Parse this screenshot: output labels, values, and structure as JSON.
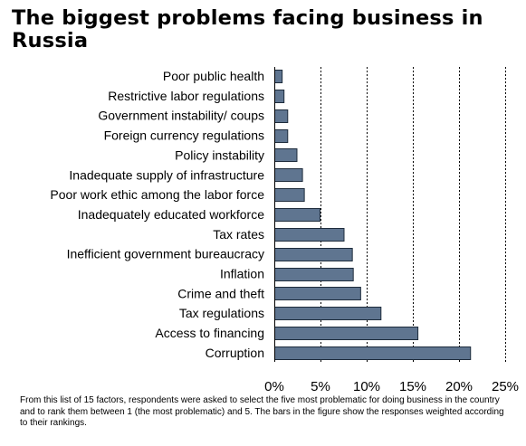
{
  "chart_data": {
    "type": "bar",
    "orientation": "horizontal",
    "title": "The biggest problems facing business in Russia",
    "categories": [
      "Poor public health",
      "Restrictive labor regulations",
      "Government instability/ coups",
      "Foreign currency regulations",
      "Policy instability",
      "Inadequate supply of infrastructure",
      "Poor work ethic among the labor force",
      "Inadequately educated workforce",
      "Tax rates",
      "Inefficient government bureaucracy",
      "Inflation",
      "Crime and theft",
      "Tax regulations",
      "Access to financing",
      "Corruption"
    ],
    "values": [
      0.8,
      1.0,
      1.4,
      1.4,
      2.4,
      3.0,
      3.2,
      4.9,
      7.5,
      8.4,
      8.5,
      9.3,
      11.5,
      15.5,
      21.2
    ],
    "xlim": [
      0,
      25
    ],
    "xticks": [
      0,
      5,
      10,
      15,
      20,
      25
    ],
    "xtick_labels": [
      "0%",
      "5%",
      "10%",
      "15%",
      "20%",
      "25%"
    ],
    "xlabel": "",
    "ylabel": "",
    "grid": "vertical dashed",
    "legend": "none",
    "bar_color": "#5f7590"
  },
  "footnote": "From this list of 15 factors, respondents were asked to select the five most problematic for doing business in the country and to rank them between 1 (the most problematic) and 5. The bars in the figure show the responses weighted according to their rankings."
}
